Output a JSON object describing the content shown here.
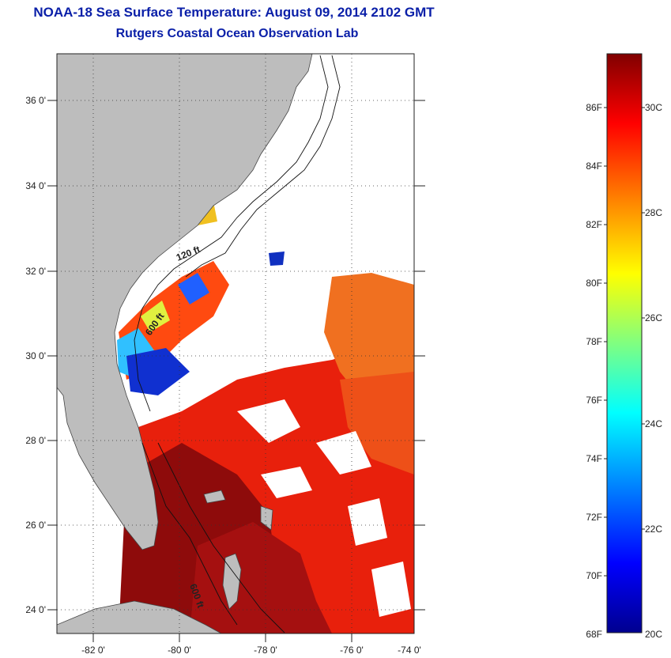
{
  "header": {
    "title": "NOAA-18 Sea Surface Temperature:  August 09, 2014 2102 GMT",
    "subtitle": "Rutgers Coastal Ocean Observation Lab"
  },
  "map": {
    "lon_ticks": [
      "-82 0'",
      "-80 0'",
      "-78 0'",
      "-76 0'",
      "-74 0'"
    ],
    "lat_ticks": [
      "36 0'",
      "34 0'",
      "32 0'",
      "30 0'",
      "28 0'",
      "26 0'",
      "24 0'"
    ],
    "contour_labels": [
      "120 ft",
      "600 ft",
      "600 ft"
    ],
    "colors": {
      "land": "#bdbdbd",
      "ocean_no_data": "#ffffff"
    }
  },
  "colorbar": {
    "fahrenheit_labels": [
      "86F",
      "84F",
      "82F",
      "80F",
      "78F",
      "76F",
      "74F",
      "72F",
      "70F",
      "68F"
    ],
    "celsius_labels": [
      "30C",
      "28C",
      "26C",
      "24C",
      "22C",
      "20C"
    ],
    "palette": [
      "#00008f",
      "#0000ff",
      "#0080ff",
      "#00ffff",
      "#80ff80",
      "#ffff00",
      "#ff8000",
      "#ff0000",
      "#800000"
    ]
  }
}
